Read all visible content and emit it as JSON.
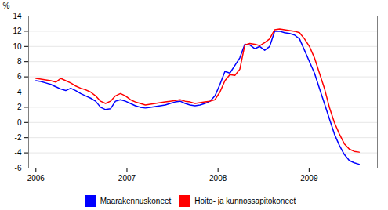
{
  "chart_data": {
    "type": "line",
    "title": "",
    "ylabel": "%",
    "x": [
      2006,
      2006.0546,
      2006.1092,
      2006.1638,
      2006.2185,
      2006.2731,
      2006.3277,
      2006.3823,
      2006.4369,
      2006.4915,
      2006.5462,
      2006.6008,
      2006.6554,
      2006.71,
      2006.7646,
      2006.8192,
      2006.8738,
      2006.9285,
      2006.9831,
      2007.0377,
      2007.0923,
      2007.1469,
      2007.2015,
      2007.2562,
      2007.3108,
      2007.3654,
      2007.42,
      2007.4746,
      2007.5292,
      2007.5838,
      2007.6385,
      2007.6931,
      2007.7477,
      2007.8023,
      2007.8569,
      2007.9115,
      2007.9662,
      2008.0208,
      2008.0754,
      2008.13,
      2008.1846,
      2008.2392,
      2008.2938,
      2008.3485,
      2008.4031,
      2008.4577,
      2008.5123,
      2008.5669,
      2008.6215,
      2008.6762,
      2008.7308,
      2008.7854,
      2008.84,
      2008.8946,
      2008.9492,
      2009.0038,
      2009.0585,
      2009.1131,
      2009.1677,
      2009.2223,
      2009.2769,
      2009.3315,
      2009.3862,
      2009.4408,
      2009.4954,
      2009.55
    ],
    "xlim": [
      2005.92,
      2009.75
    ],
    "xticks": [
      2006,
      2007,
      2008,
      2009
    ],
    "ylim": [
      -6,
      14
    ],
    "yticks": [
      -6,
      -4,
      -2,
      0,
      2,
      4,
      6,
      8,
      10,
      12,
      14
    ],
    "grid": true,
    "legend": "bottom",
    "series": [
      {
        "name": "Maarakennuskoneet",
        "color": "#0000ff",
        "values": [
          5.5,
          5.4,
          5.2,
          5.0,
          4.7,
          4.4,
          4.2,
          4.5,
          4.2,
          3.8,
          3.5,
          3.2,
          2.8,
          2.0,
          1.7,
          1.8,
          2.8,
          3.0,
          2.8,
          2.5,
          2.2,
          2.0,
          1.9,
          2.0,
          2.1,
          2.2,
          2.3,
          2.5,
          2.7,
          2.8,
          2.5,
          2.3,
          2.2,
          2.3,
          2.5,
          2.8,
          3.5,
          5.0,
          6.7,
          6.5,
          7.5,
          8.5,
          10.3,
          10.2,
          9.7,
          10.0,
          9.5,
          10.0,
          12.0,
          12.0,
          11.8,
          11.7,
          11.5,
          11.0,
          9.5,
          8.0,
          6.5,
          4.5,
          2.5,
          0.5,
          -1.5,
          -3.0,
          -4.2,
          -5.0,
          -5.3,
          -5.5
        ]
      },
      {
        "name": "Hoito- ja kunnossapitokoneet",
        "color": "#ff0000",
        "values": [
          5.8,
          5.7,
          5.6,
          5.5,
          5.3,
          5.8,
          5.5,
          5.2,
          4.8,
          4.5,
          4.3,
          4.0,
          3.5,
          2.8,
          2.5,
          2.8,
          3.5,
          3.8,
          3.5,
          3.0,
          2.7,
          2.5,
          2.3,
          2.4,
          2.5,
          2.6,
          2.7,
          2.8,
          2.9,
          3.0,
          2.8,
          2.7,
          2.5,
          2.6,
          2.7,
          2.8,
          3.0,
          4.0,
          5.5,
          6.3,
          6.2,
          7.0,
          10.2,
          10.4,
          10.3,
          10.1,
          10.5,
          11.0,
          12.2,
          12.3,
          12.2,
          12.1,
          12.0,
          11.8,
          11.0,
          10.0,
          8.5,
          6.5,
          4.5,
          2.0,
          0.0,
          -1.5,
          -2.8,
          -3.5,
          -3.8,
          -3.9
        ]
      }
    ]
  }
}
